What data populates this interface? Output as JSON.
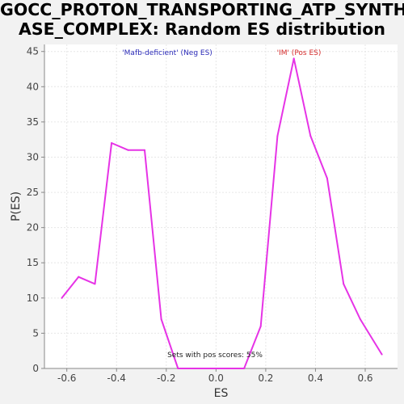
{
  "chart_data": {
    "type": "line",
    "title": "GOCC_PROTON_TRANSPORTING_ATP_SYNTHASE_COMPLEX: Random ES distribution",
    "title_lines": [
      "GOCC_PROTON_TRANSPORTING_ATP_SYNTH",
      "ASE_COMPLEX: Random ES distribution"
    ],
    "xlabel": "ES",
    "ylabel": "P(ES)",
    "xlim": [
      -0.69,
      0.73
    ],
    "ylim": [
      0,
      46
    ],
    "x_ticks": [
      -0.6,
      -0.4,
      -0.2,
      0.0,
      0.2,
      0.4,
      0.6
    ],
    "x_tick_labels": [
      "-0.6",
      "-0.4",
      "-0.2",
      "0.0",
      "0.2",
      "0.4",
      "0.6"
    ],
    "y_ticks": [
      0,
      5,
      10,
      15,
      20,
      25,
      30,
      35,
      40,
      45
    ],
    "y_tick_labels": [
      "0",
      "5",
      "10",
      "15",
      "20",
      "25",
      "30",
      "35",
      "40",
      "45"
    ],
    "grid": true,
    "series": [
      {
        "color": "#e633e6",
        "x": [
          -0.62,
          -0.553,
          -0.487,
          -0.42,
          -0.353,
          -0.287,
          -0.22,
          -0.153,
          -0.087,
          -0.02,
          0.047,
          0.113,
          0.18,
          0.247,
          0.313,
          0.38,
          0.447,
          0.513,
          0.58,
          0.667
        ],
        "y": [
          10,
          13,
          12,
          32,
          31,
          31,
          7,
          0,
          0,
          0,
          0,
          0,
          6,
          33,
          44,
          33,
          27,
          12,
          7,
          2
        ]
      }
    ],
    "annotations": [
      {
        "text": "'Mafb-deficient' (Neg ES)",
        "color": "#2a2ab8"
      },
      {
        "text": "'IM' (Pos ES)",
        "color": "#d42a2a"
      },
      {
        "text": "Sets with pos scores: 55%",
        "color": "#222222"
      }
    ]
  },
  "colors": {
    "plot_background": "#ffffff",
    "page_background": "#f2f2f2",
    "grid": "#e6e6e6",
    "axis": "#888888"
  }
}
